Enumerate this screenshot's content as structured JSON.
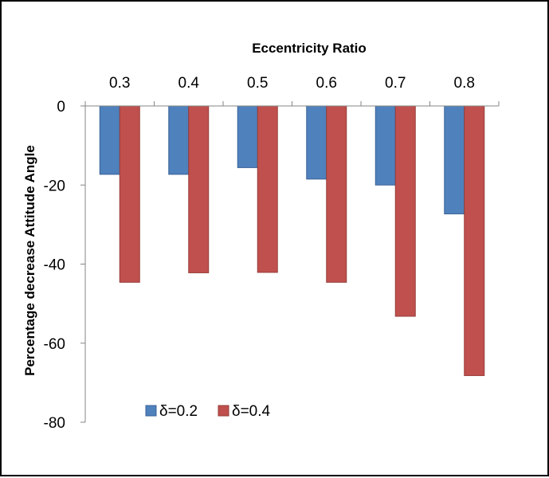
{
  "chart_data": {
    "type": "bar",
    "title": "",
    "xlabel": "Eccentricity Ratio",
    "ylabel": "Percentage decrease  Attitude Angle",
    "categories": [
      "0.3",
      "0.4",
      "0.5",
      "0.6",
      "0.7",
      "0.8"
    ],
    "series": [
      {
        "name": "δ=0.2",
        "color": "#4f81bd",
        "values": [
          -17.3,
          -17.3,
          -15.6,
          -18.5,
          -20.0,
          -27.3
        ]
      },
      {
        "name": "δ=0.4",
        "color": "#c0504d",
        "values": [
          -44.6,
          -42.2,
          -42.1,
          -44.6,
          -53.2,
          -68.2
        ]
      }
    ],
    "ylim": [
      -80,
      0
    ],
    "yticks": [
      0,
      -20,
      -40,
      -60,
      -80
    ],
    "x_axis_position": "top",
    "grid": false,
    "legend_position": "bottom-left inside"
  }
}
